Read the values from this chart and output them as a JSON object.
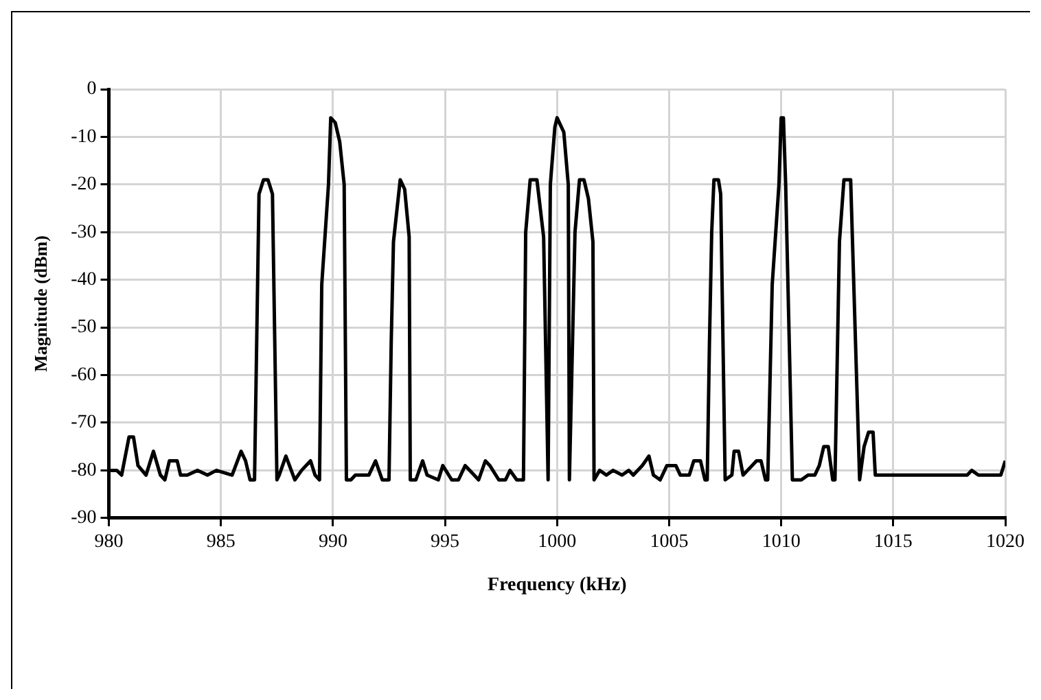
{
  "chart_data": {
    "type": "line",
    "xlabel": "Frequency (kHz)",
    "ylabel": "Magnitude (dBm)",
    "xlim": [
      980,
      1020
    ],
    "xticks": [
      980,
      985,
      990,
      995,
      1000,
      1005,
      1010,
      1015,
      1020
    ],
    "ylim": [
      -90,
      0
    ],
    "yticks": [
      -90,
      -80,
      -70,
      -60,
      -50,
      -40,
      -30,
      -20,
      -10,
      0
    ],
    "grid": true,
    "legend": false,
    "marker": "none",
    "line_style": "solid",
    "series": [
      {
        "color": "#000000",
        "x": [
          980,
          980.35,
          980.57,
          980.9,
          981.1,
          981.3,
          981.66,
          981.99,
          982.3,
          982.5,
          982.7,
          983.05,
          983.2,
          983.5,
          983.96,
          984.4,
          984.8,
          985.5,
          985.9,
          986.1,
          986.3,
          986.5,
          986.6,
          986.7,
          986.9,
          987.1,
          987.3,
          987.4,
          987.5,
          987.6,
          987.9,
          988.3,
          988.6,
          989,
          989.2,
          989.4,
          989.5,
          989.8,
          989.9,
          990.1,
          990.3,
          990.5,
          990.6,
          990.8,
          991,
          991.3,
          991.6,
          991.9,
          992.2,
          992.5,
          992.6,
          992.7,
          993,
          993.2,
          993.4,
          993.45,
          993.7,
          994,
          994.2,
          994.7,
          994.9,
          995.3,
          995.6,
          995.9,
          996.3,
          996.5,
          996.8,
          997,
          997.4,
          997.7,
          997.9,
          998.2,
          998.5,
          998.6,
          998.8,
          999.1,
          999.4,
          999.6,
          999.7,
          999.9,
          1000,
          1000.3,
          1000.5,
          1000.55,
          1000.8,
          1001,
          1001.2,
          1001.4,
          1001.6,
          1001.65,
          1001.9,
          1002.2,
          1002.5,
          1002.9,
          1003.2,
          1003.4,
          1003.8,
          1004.1,
          1004.3,
          1004.6,
          1004.9,
          1005.3,
          1005.5,
          1005.9,
          1006.1,
          1006.4,
          1006.6,
          1006.7,
          1006.8,
          1006.9,
          1007,
          1007.2,
          1007.3,
          1007.5,
          1007.8,
          1007.9,
          1008.1,
          1008.3,
          1008.5,
          1008.9,
          1009.1,
          1009.3,
          1009.4,
          1009.6,
          1009.9,
          1010,
          1010.1,
          1010.2,
          1010.5,
          1010.9,
          1011.2,
          1011.5,
          1011.7,
          1011.9,
          1012.1,
          1012.3,
          1012.4,
          1012.6,
          1012.8,
          1013.1,
          1013.5,
          1013.7,
          1013.9,
          1014.1,
          1014.2,
          1014.4,
          1018.3,
          1018.5,
          1018.8,
          1019.8,
          1020
        ],
        "values": [
          -80,
          -80,
          -81,
          -73,
          -73,
          -79,
          -81,
          -76,
          -81,
          -82,
          -78,
          -78,
          -81,
          -81,
          -80,
          -81,
          -80,
          -81,
          -76,
          -78,
          -82,
          -82,
          -52,
          -22,
          -19,
          -19,
          -22,
          -52,
          -82,
          -81,
          -77,
          -82,
          -80,
          -78,
          -81,
          -82,
          -41,
          -20,
          -6,
          -7,
          -11,
          -20,
          -82,
          -82,
          -81,
          -81,
          -81,
          -78,
          -82,
          -82,
          -53,
          -32,
          -19,
          -21,
          -31,
          -82,
          -82,
          -78,
          -81,
          -82,
          -79,
          -82,
          -82,
          -79,
          -81,
          -82,
          -78,
          -79,
          -82,
          -82,
          -80,
          -82,
          -82,
          -30,
          -19,
          -19,
          -31,
          -82,
          -20,
          -8,
          -6,
          -9,
          -20,
          -82,
          -30,
          -19,
          -19,
          -23,
          -32,
          -82,
          -80,
          -81,
          -80,
          -81,
          -80,
          -81,
          -79,
          -77,
          -81,
          -82,
          -79,
          -79,
          -81,
          -81,
          -78,
          -78,
          -82,
          -82,
          -53,
          -30,
          -19,
          -19,
          -22,
          -82,
          -81,
          -76,
          -76,
          -81,
          -80,
          -78,
          -78,
          -82,
          -82,
          -41,
          -20,
          -6,
          -6,
          -20,
          -82,
          -82,
          -81,
          -81,
          -79,
          -75,
          -75,
          -82,
          -82,
          -32,
          -19,
          -19,
          -82,
          -75,
          -72,
          -72,
          -81,
          -81,
          -81,
          -80,
          -81,
          -81,
          -78
        ]
      }
    ]
  }
}
